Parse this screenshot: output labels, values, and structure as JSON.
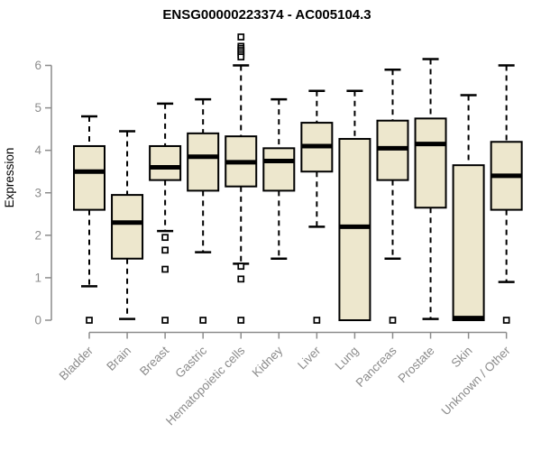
{
  "chart_data": {
    "type": "box",
    "title": "ENSG00000223374 - AC005104.3",
    "ylabel": "Expression",
    "xlabel": "",
    "ylim": [
      0,
      6.8
    ],
    "yticks": [
      0,
      1,
      2,
      3,
      4,
      5,
      6
    ],
    "grid": false,
    "legend": false,
    "categories": [
      "Bladder",
      "Brain",
      "Breast",
      "Gastric",
      "Hematopoietic cells",
      "Kidney",
      "Liver",
      "Lung",
      "Pancreas",
      "Prostate",
      "Skin",
      "Unknown / Other"
    ],
    "series": [
      {
        "label": "Bladder",
        "min": 0.8,
        "q1": 2.6,
        "median": 3.5,
        "q3": 4.1,
        "max": 4.8,
        "outliers": [
          0
        ]
      },
      {
        "label": "Brain",
        "min": 0.03,
        "q1": 1.45,
        "median": 2.3,
        "q3": 2.95,
        "max": 4.45,
        "outliers": []
      },
      {
        "label": "Breast",
        "min": 2.1,
        "q1": 3.3,
        "median": 3.6,
        "q3": 4.1,
        "max": 5.1,
        "outliers": [
          1.95,
          1.65,
          1.2,
          0
        ]
      },
      {
        "label": "Gastric",
        "min": 1.6,
        "q1": 3.05,
        "median": 3.85,
        "q3": 4.4,
        "max": 5.2,
        "outliers": [
          0
        ]
      },
      {
        "label": "Hematopoietic cells",
        "min": 1.33,
        "q1": 3.15,
        "median": 3.72,
        "q3": 4.33,
        "max": 6.0,
        "outliers": [
          6.67,
          6.45,
          6.4,
          6.35,
          6.3,
          6.25,
          6.2,
          1.27,
          0.97,
          0
        ]
      },
      {
        "label": "Kidney",
        "min": 1.45,
        "q1": 3.05,
        "median": 3.75,
        "q3": 4.05,
        "max": 5.2,
        "outliers": []
      },
      {
        "label": "Liver",
        "min": 2.2,
        "q1": 3.5,
        "median": 4.1,
        "q3": 4.65,
        "max": 5.4,
        "outliers": [
          0
        ]
      },
      {
        "label": "Lung",
        "min": 0,
        "q1": 0,
        "median": 2.2,
        "q3": 4.27,
        "max": 5.4,
        "outliers": []
      },
      {
        "label": "Pancreas",
        "min": 1.45,
        "q1": 3.3,
        "median": 4.05,
        "q3": 4.7,
        "max": 5.9,
        "outliers": [
          0
        ]
      },
      {
        "label": "Prostate",
        "min": 0.03,
        "q1": 2.65,
        "median": 4.15,
        "q3": 4.75,
        "max": 6.15,
        "outliers": []
      },
      {
        "label": "Skin",
        "min": 0,
        "q1": 0,
        "median": 0.05,
        "q3": 3.65,
        "max": 5.3,
        "outliers": []
      },
      {
        "label": "Unknown / Other",
        "min": 0.9,
        "q1": 2.6,
        "median": 3.4,
        "q3": 4.2,
        "max": 6.0,
        "outliers": [
          0
        ]
      }
    ],
    "colors": {
      "box_fill": "#ede7cd",
      "box_stroke": "#000000",
      "median": "#000000",
      "whisker": "#000000",
      "outlier_fill": "#ffffff",
      "axis": "#8c8c8c",
      "title": "#000000",
      "background": "#ffffff"
    }
  }
}
